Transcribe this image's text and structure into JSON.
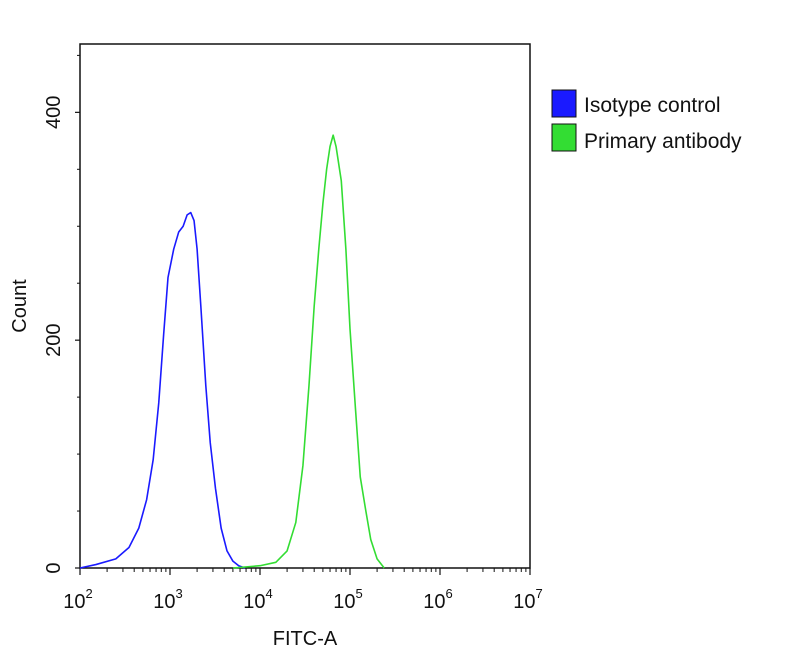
{
  "chart_data": {
    "type": "line",
    "title": "",
    "xlabel": "FITC-A",
    "ylabel": "Count",
    "x_scale": "log10",
    "xlim": [
      100,
      10000000
    ],
    "ylim": [
      0,
      460
    ],
    "grid": false,
    "legend_position": "top-right-outside",
    "x_ticks": [
      {
        "base": "10",
        "exp": "2"
      },
      {
        "base": "10",
        "exp": "3"
      },
      {
        "base": "10",
        "exp": "4"
      },
      {
        "base": "10",
        "exp": "5"
      },
      {
        "base": "10",
        "exp": "6"
      },
      {
        "base": "10",
        "exp": "7"
      }
    ],
    "y_ticks": [
      "0",
      "200",
      "400"
    ],
    "series": [
      {
        "name": "Isotype control",
        "color": "#1a1aff",
        "x": [
          100,
          150,
          250,
          350,
          450,
          550,
          650,
          750,
          850,
          950,
          1100,
          1250,
          1400,
          1550,
          1700,
          1850,
          2000,
          2200,
          2500,
          2800,
          3200,
          3700,
          4300,
          5000,
          5800,
          6800
        ],
        "y": [
          0,
          3,
          8,
          18,
          35,
          60,
          95,
          145,
          205,
          255,
          280,
          295,
          300,
          310,
          312,
          305,
          280,
          230,
          160,
          110,
          70,
          35,
          15,
          6,
          2,
          0
        ]
      },
      {
        "name": "Primary antibody",
        "color": "#33dd33",
        "x": [
          5000,
          10000,
          15000,
          20000,
          25000,
          30000,
          35000,
          40000,
          45000,
          50000,
          55000,
          60000,
          65000,
          70000,
          80000,
          90000,
          100000,
          115000,
          130000,
          150000,
          170000,
          200000,
          240000
        ],
        "y": [
          0,
          2,
          5,
          15,
          40,
          90,
          160,
          230,
          280,
          320,
          350,
          370,
          380,
          370,
          340,
          280,
          210,
          140,
          80,
          50,
          25,
          8,
          0
        ]
      }
    ]
  }
}
